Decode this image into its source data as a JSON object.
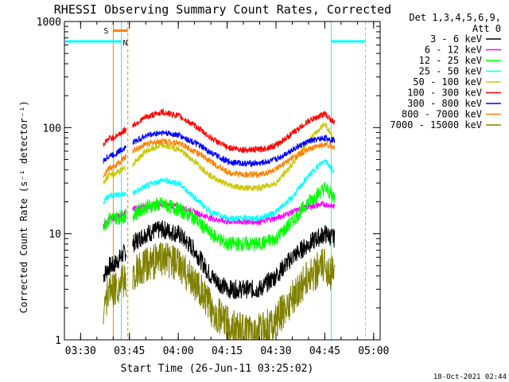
{
  "chart_data": {
    "type": "line",
    "title": "RHESSI Observing Summary Count Rates, Corrected",
    "xlabel": "Start Time (26-Jun-11 03:25:02)",
    "ylabel": "Corrected Count Rate (s⁻¹ detector⁻¹)",
    "y_scale": "log",
    "ylim": [
      1,
      1000
    ],
    "xlim": [
      "03:25",
      "05:02"
    ],
    "x_ticks": [
      "03:30",
      "03:45",
      "04:00",
      "04:15",
      "04:30",
      "04:45",
      "05:00"
    ],
    "y_ticks": [
      "1",
      "10",
      "100",
      "1000"
    ],
    "legend_header": [
      "Det 1,3,4,5,6,9,",
      "Att 0"
    ],
    "legend_position": "right",
    "flag_labels": [
      {
        "label": "S",
        "color": "#ff8000"
      },
      {
        "label": "N",
        "color": "#00ffff"
      }
    ],
    "data_gap": [
      "03:44",
      "03:46"
    ],
    "series": [
      {
        "name": "3 - 6 keV",
        "color": "#000000",
        "x": [
          "03:37",
          "03:38",
          "03:39",
          "03:40",
          "03:46",
          "03:50",
          "03:55",
          "04:00",
          "04:05",
          "04:10",
          "04:15",
          "04:20",
          "04:25",
          "04:30",
          "04:35",
          "04:40",
          "04:45",
          "04:48"
        ],
        "y": [
          4,
          4.5,
          5,
          5,
          8,
          10,
          11,
          10,
          7,
          4,
          3,
          3,
          3,
          4,
          6,
          8,
          10,
          9
        ]
      },
      {
        "name": "6 - 12 keV",
        "color": "#ff00ff",
        "x": [
          "03:37",
          "03:38",
          "03:39",
          "03:40",
          "03:46",
          "03:50",
          "03:55",
          "04:00",
          "04:05",
          "04:10",
          "04:15",
          "04:20",
          "04:25",
          "04:30",
          "04:35",
          "04:40",
          "04:45",
          "04:48"
        ],
        "y": [
          12,
          13,
          14,
          14,
          17,
          18,
          19,
          18,
          16,
          14,
          13,
          13,
          13,
          14,
          16,
          18,
          19,
          18
        ]
      },
      {
        "name": "12 - 25 keV",
        "color": "#00ff00",
        "x": [
          "03:37",
          "03:38",
          "03:39",
          "03:40",
          "03:46",
          "03:50",
          "03:55",
          "04:00",
          "04:05",
          "04:10",
          "04:15",
          "04:20",
          "04:25",
          "04:30",
          "04:35",
          "04:40",
          "04:45",
          "04:48"
        ],
        "y": [
          12,
          13,
          14,
          14,
          15,
          18,
          19,
          17,
          14,
          10,
          8,
          8,
          8,
          9,
          13,
          20,
          27,
          22
        ]
      },
      {
        "name": "25 - 50 keV",
        "color": "#00ffff",
        "x": [
          "03:37",
          "03:38",
          "03:39",
          "03:40",
          "03:46",
          "03:50",
          "03:55",
          "04:00",
          "04:05",
          "04:10",
          "04:15",
          "04:20",
          "04:25",
          "04:30",
          "04:35",
          "04:40",
          "04:45",
          "04:48"
        ],
        "y": [
          20,
          22,
          23,
          23,
          24,
          28,
          32,
          30,
          22,
          16,
          14,
          14,
          14,
          16,
          22,
          35,
          50,
          38
        ]
      },
      {
        "name": "50 - 100 keV",
        "color": "#c8c800",
        "x": [
          "03:37",
          "03:38",
          "03:39",
          "03:40",
          "03:46",
          "03:50",
          "03:55",
          "04:00",
          "04:05",
          "04:10",
          "04:15",
          "04:20",
          "04:25",
          "04:30",
          "04:35",
          "04:40",
          "04:45",
          "04:48"
        ],
        "y": [
          30,
          34,
          36,
          36,
          45,
          60,
          68,
          63,
          48,
          35,
          29,
          27,
          27,
          30,
          45,
          75,
          110,
          75
        ]
      },
      {
        "name": "100 - 300 keV",
        "color": "#ff0000",
        "x": [
          "03:37",
          "03:38",
          "03:39",
          "03:40",
          "03:46",
          "03:50",
          "03:55",
          "04:00",
          "04:05",
          "04:10",
          "04:15",
          "04:20",
          "04:25",
          "04:30",
          "04:35",
          "04:40",
          "04:45",
          "04:48"
        ],
        "y": [
          70,
          75,
          80,
          80,
          105,
          125,
          140,
          130,
          105,
          80,
          65,
          62,
          62,
          68,
          88,
          115,
          135,
          110
        ]
      },
      {
        "name": "300 - 800 keV",
        "color": "#0000ff",
        "x": [
          "03:37",
          "03:38",
          "03:39",
          "03:40",
          "03:46",
          "03:50",
          "03:55",
          "04:00",
          "04:05",
          "04:10",
          "04:15",
          "04:20",
          "04:25",
          "04:30",
          "04:35",
          "04:40",
          "04:45",
          "04:48"
        ],
        "y": [
          48,
          52,
          55,
          55,
          72,
          84,
          90,
          85,
          72,
          58,
          48,
          46,
          46,
          50,
          62,
          74,
          80,
          76
        ]
      },
      {
        "name": "800 - 7000 keV",
        "color": "#ff8000",
        "x": [
          "03:37",
          "03:38",
          "03:39",
          "03:40",
          "03:46",
          "03:50",
          "03:55",
          "04:00",
          "04:05",
          "04:10",
          "04:15",
          "04:20",
          "04:25",
          "04:30",
          "04:35",
          "04:40",
          "04:45",
          "04:48"
        ],
        "y": [
          36,
          39,
          42,
          42,
          60,
          70,
          75,
          72,
          60,
          48,
          38,
          36,
          36,
          40,
          52,
          62,
          70,
          65
        ]
      },
      {
        "name": "7000 - 15000 keV",
        "color": "#808000",
        "x": [
          "03:37",
          "03:38",
          "03:39",
          "03:40",
          "03:46",
          "03:50",
          "03:55",
          "04:00",
          "04:05",
          "04:10",
          "04:15",
          "04:20",
          "04:25",
          "04:30",
          "04:35",
          "04:40",
          "04:45",
          "04:48"
        ],
        "y": [
          2,
          2.5,
          3,
          3,
          4,
          5,
          6,
          5,
          3.5,
          2,
          1.4,
          1.2,
          1.2,
          1.5,
          2.5,
          4,
          5,
          4
        ]
      }
    ]
  },
  "footer": {
    "timestamp": "18-Oct-2021 02:44"
  }
}
